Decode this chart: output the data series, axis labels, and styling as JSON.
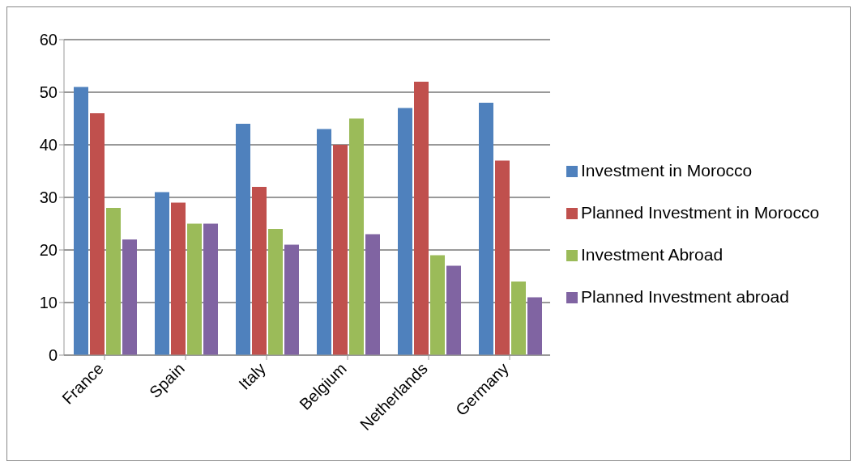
{
  "chart_data": {
    "type": "bar",
    "categories": [
      "France",
      "Spain",
      "Italy",
      "Belgium",
      "Netherlands",
      "Germany"
    ],
    "series": [
      {
        "name": "Investment in Morocco",
        "color": "#4f81bd",
        "values": [
          51,
          31,
          44,
          43,
          47,
          48
        ]
      },
      {
        "name": "Planned Investment in Morocco",
        "color": "#c0504d",
        "values": [
          46,
          29,
          32,
          40,
          52,
          37
        ]
      },
      {
        "name": "Investment Abroad",
        "color": "#9bbb59",
        "values": [
          28,
          25,
          24,
          45,
          19,
          14
        ]
      },
      {
        "name": "Planned Investment abroad",
        "color": "#8064a2",
        "values": [
          22,
          25,
          21,
          23,
          17,
          11
        ]
      }
    ],
    "ylim": [
      0,
      60
    ],
    "yticks": [
      0,
      10,
      20,
      30,
      40,
      50,
      60
    ],
    "grid": "y",
    "legend": "right"
  }
}
